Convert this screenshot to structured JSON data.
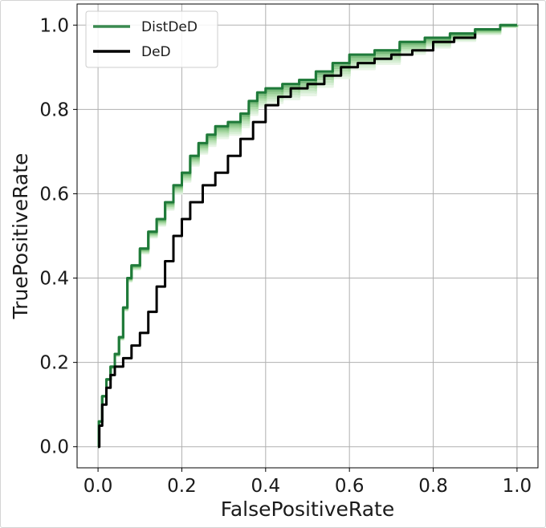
{
  "chart_data": {
    "type": "line",
    "xlabel": "FalsePositiveRate",
    "ylabel": "TruePositiveRate",
    "xlim": [
      -0.05,
      1.05
    ],
    "ylim": [
      -0.05,
      1.05
    ],
    "xticks": [
      "0.0",
      "0.2",
      "0.4",
      "0.6",
      "0.8",
      "1.0"
    ],
    "yticks": [
      "0.0",
      "0.2",
      "0.4",
      "0.6",
      "0.8",
      "1.0"
    ],
    "grid": true,
    "legend_position": "top-left",
    "series": [
      {
        "name": "DistDeD",
        "color": "#3a8a50",
        "points": [
          [
            0.0,
            0.0
          ],
          [
            0.002,
            0.06
          ],
          [
            0.01,
            0.12
          ],
          [
            0.02,
            0.16
          ],
          [
            0.03,
            0.19
          ],
          [
            0.04,
            0.22
          ],
          [
            0.05,
            0.26
          ],
          [
            0.06,
            0.33
          ],
          [
            0.07,
            0.4
          ],
          [
            0.08,
            0.43
          ],
          [
            0.1,
            0.47
          ],
          [
            0.12,
            0.51
          ],
          [
            0.14,
            0.54
          ],
          [
            0.16,
            0.58
          ],
          [
            0.18,
            0.62
          ],
          [
            0.2,
            0.65
          ],
          [
            0.22,
            0.69
          ],
          [
            0.24,
            0.72
          ],
          [
            0.26,
            0.74
          ],
          [
            0.28,
            0.76
          ],
          [
            0.31,
            0.77
          ],
          [
            0.34,
            0.79
          ],
          [
            0.36,
            0.82
          ],
          [
            0.38,
            0.84
          ],
          [
            0.4,
            0.85
          ],
          [
            0.44,
            0.86
          ],
          [
            0.48,
            0.87
          ],
          [
            0.52,
            0.89
          ],
          [
            0.56,
            0.91
          ],
          [
            0.6,
            0.93
          ],
          [
            0.66,
            0.94
          ],
          [
            0.72,
            0.96
          ],
          [
            0.78,
            0.97
          ],
          [
            0.84,
            0.98
          ],
          [
            0.9,
            0.99
          ],
          [
            0.96,
            1.0
          ],
          [
            1.0,
            1.0
          ]
        ]
      },
      {
        "name": "DeD",
        "color": "#000000",
        "points": [
          [
            0.0,
            0.0
          ],
          [
            0.003,
            0.05
          ],
          [
            0.01,
            0.1
          ],
          [
            0.02,
            0.14
          ],
          [
            0.03,
            0.17
          ],
          [
            0.04,
            0.19
          ],
          [
            0.06,
            0.21
          ],
          [
            0.08,
            0.24
          ],
          [
            0.1,
            0.27
          ],
          [
            0.12,
            0.32
          ],
          [
            0.14,
            0.38
          ],
          [
            0.16,
            0.44
          ],
          [
            0.18,
            0.5
          ],
          [
            0.2,
            0.54
          ],
          [
            0.22,
            0.58
          ],
          [
            0.25,
            0.62
          ],
          [
            0.28,
            0.65
          ],
          [
            0.31,
            0.69
          ],
          [
            0.34,
            0.73
          ],
          [
            0.37,
            0.77
          ],
          [
            0.4,
            0.81
          ],
          [
            0.43,
            0.83
          ],
          [
            0.46,
            0.85
          ],
          [
            0.5,
            0.86
          ],
          [
            0.54,
            0.88
          ],
          [
            0.58,
            0.9
          ],
          [
            0.62,
            0.91
          ],
          [
            0.66,
            0.92
          ],
          [
            0.7,
            0.93
          ],
          [
            0.75,
            0.94
          ],
          [
            0.8,
            0.96
          ],
          [
            0.85,
            0.97
          ],
          [
            0.9,
            0.98
          ]
        ]
      }
    ]
  }
}
